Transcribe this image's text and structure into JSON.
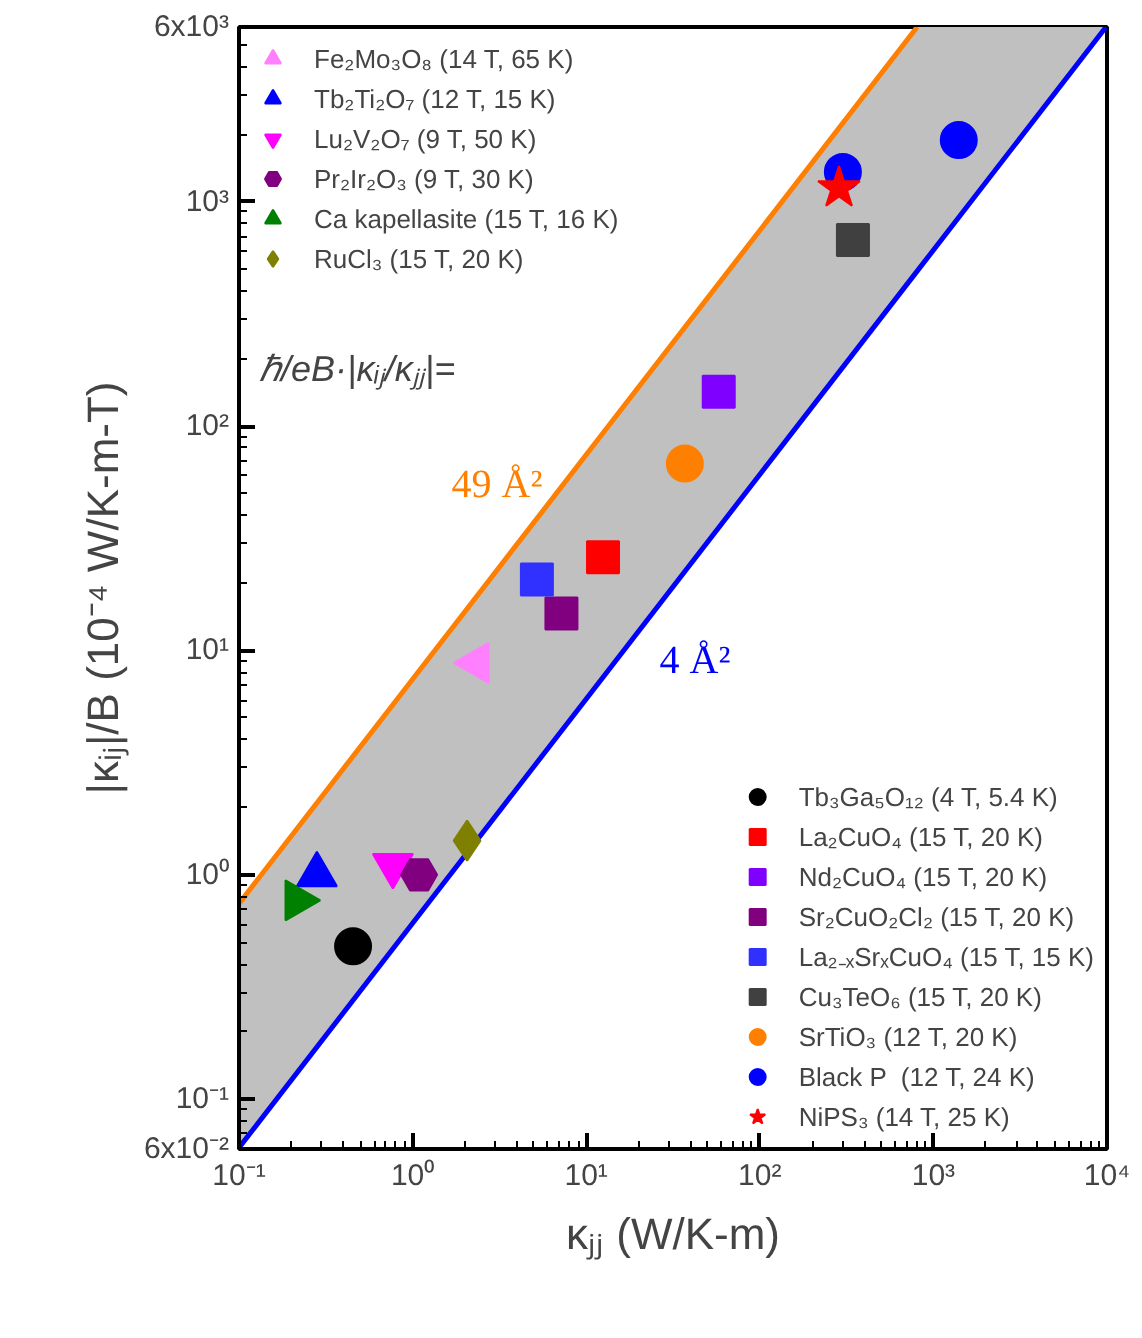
{
  "chart_data": {
    "type": "scatter",
    "xlabel": "κⱼⱼ (W/K-m)",
    "ylabel": "|κᵢⱼ|/B (10⁻⁴ W/K-m-T)",
    "log": "xy",
    "xlim": [
      0.1,
      10000
    ],
    "ylim": [
      0.06,
      6000
    ],
    "xticks": [
      {
        "value": 0.1,
        "label": "10⁻¹"
      },
      {
        "value": 1,
        "label": "10⁰"
      },
      {
        "value": 10,
        "label": "10¹"
      },
      {
        "value": 100,
        "label": "10²"
      },
      {
        "value": 1000,
        "label": "10³"
      },
      {
        "value": 10000,
        "label": "10⁴"
      }
    ],
    "yticks": [
      {
        "value": 0.06,
        "label": "6x10⁻²"
      },
      {
        "value": 0.1,
        "label": "10⁻¹"
      },
      {
        "value": 1,
        "label": "10⁰"
      },
      {
        "value": 10,
        "label": "10¹"
      },
      {
        "value": 100,
        "label": "10²"
      },
      {
        "value": 1000,
        "label": "10³"
      },
      {
        "value": 6000,
        "label": "6x10³"
      }
    ],
    "grid": false,
    "legend": [
      "top left",
      "bottom right"
    ],
    "annotations": [
      "ℏ/eB·|κᵢⱼ/κⱼⱼ|=",
      "49 Å²",
      "4 Å²"
    ],
    "series": [
      {
        "type": "line",
        "color": "#ff7f00",
        "x": [
          0.1,
          1,
          10,
          100,
          806
        ],
        "values": [
          0.744,
          7.44,
          74.4,
          744,
          6000
        ]
      },
      {
        "type": "line",
        "color": "#0000ff",
        "x": [
          0.1,
          1,
          10,
          100,
          806,
          9870
        ],
        "values": [
          0.0608,
          0.608,
          6.08,
          60.8,
          490,
          6000
        ],
        "lower": [
          0.0608,
          0.608,
          6.08,
          60.8,
          490,
          6000
        ],
        "upper": [
          0.744,
          7.44,
          74.4,
          744,
          6000,
          6000
        ]
      },
      {
        "name": "Fe₂Mo₃O₈ (14 T, 65 K)",
        "marker": "triangle-left",
        "color": "#ff80ff",
        "x": [
          2.35
        ],
        "values": [
          8.8
        ]
      },
      {
        "name": "Tb₂Ti₂O₇ (12 T, 15 K)",
        "marker": "triangle",
        "color": "#0000ff",
        "x": [
          0.281
        ],
        "values": [
          1.0
        ]
      },
      {
        "name": "Lu₂V₂O₇ (9 T, 50 K)",
        "marker": "triangle-down",
        "color": "#ff00ff",
        "x": [
          0.77
        ],
        "values": [
          1.1
        ]
      },
      {
        "name": "Pr₂Ir₂O₃ (9 T, 30 K)",
        "color": "#800080",
        "x": [
          1.09
        ],
        "values": [
          1.0
        ]
      },
      {
        "name": "Ca kapellasite (15 T, 16 K)",
        "marker": "triangle-right",
        "color": "#008000",
        "x": [
          0.216
        ],
        "values": [
          0.77
        ]
      },
      {
        "name": "RuCl₃ (15 T, 20 K)",
        "marker": "diamond",
        "color": "#808000",
        "x": [
          2.06
        ],
        "values": [
          1.42
        ]
      },
      {
        "name": "Tb₃Ga₅O₁₂ (4 T, 5.4 K)",
        "marker": "circle",
        "color": "#000000",
        "x": [
          0.454
        ],
        "values": [
          0.48
        ]
      },
      {
        "name": "La₂CuO₄ (15 T, 20 K)",
        "marker": "square",
        "color": "#ff0000",
        "x": [
          12.5
        ],
        "values": [
          26
        ]
      },
      {
        "name": "Nd₂CuO₄ (15 T, 20 K)",
        "marker": "square",
        "color": "#8000ff",
        "x": [
          58
        ],
        "values": [
          142
        ]
      },
      {
        "name": "Sr₂CuO₂Cl₂ (15 T, 20 K)",
        "marker": "square",
        "color": "#800080",
        "x": [
          7.2
        ],
        "values": [
          14.6
        ]
      },
      {
        "name": "La₂₋ₓSrₓCuO₄ (15 T, 15 K)",
        "marker": "square",
        "color": "#3030ff",
        "x": [
          5.2
        ],
        "values": [
          20.7
        ]
      },
      {
        "name": "Cu₃TeO₆ (15 T, 20 K)",
        "marker": "square",
        "color": "#404040",
        "x": [
          344
        ],
        "values": [
          675
        ]
      },
      {
        "name": "SrTiO₃ (12 T, 20 K)",
        "marker": "circle",
        "color": "#ff8000",
        "x": [
          37
        ],
        "values": [
          68
        ]
      },
      {
        "name": "Black P  (12 T, 24 K)",
        "marker": "circle",
        "color": "#0000ff",
        "x": [
          301,
          1400
        ],
        "values": [
          1355,
          1880
        ]
      },
      {
        "name": "NiPS₃ (14 T, 25 K)",
        "marker": "star",
        "color": "#ff0000",
        "x": [
          286
        ],
        "values": [
          1150
        ]
      }
    ]
  }
}
